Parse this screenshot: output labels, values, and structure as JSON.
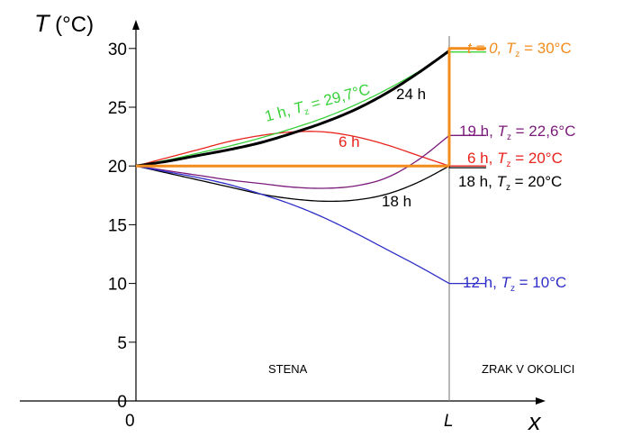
{
  "chart_data": {
    "type": "line",
    "title": "",
    "ylabel": "T (°C)",
    "xlabel": "x",
    "ylim": [
      0,
      32
    ],
    "yticks": [
      0,
      5,
      10,
      15,
      20,
      25,
      30
    ],
    "xticks": [
      {
        "value": 0,
        "label": "0"
      },
      {
        "value": 1,
        "label": "L"
      }
    ],
    "grid": false,
    "regions": [
      {
        "label": "STENA"
      },
      {
        "label": "ZRAK V OKOLICI"
      }
    ],
    "series": [
      {
        "label": "t = 0, Tz = 30°C",
        "color": "#f28c1c",
        "wall": {
          "x": [
            0,
            1
          ],
          "y": [
            20,
            20
          ]
        },
        "ambient": 30
      },
      {
        "label": "1 h, Tz = 29,7°C",
        "color": "#39d13a",
        "wall": {
          "x": [
            0,
            0.1,
            0.2,
            0.3,
            0.4,
            0.5,
            0.6,
            0.7,
            0.8,
            0.9,
            1.0
          ],
          "y": [
            20,
            20.5,
            21.1,
            21.7,
            22.4,
            23.2,
            24.1,
            25.2,
            26.5,
            28.0,
            29.7
          ]
        },
        "ambient": 29.7
      },
      {
        "label": "24 h",
        "color": "#000000",
        "wall": {
          "x": [
            0,
            0.1,
            0.2,
            0.3,
            0.4,
            0.5,
            0.6,
            0.7,
            0.8,
            0.9,
            1.0
          ],
          "y": [
            20,
            20.4,
            20.9,
            21.4,
            22.0,
            22.8,
            23.7,
            24.8,
            26.2,
            27.9,
            29.8
          ]
        }
      },
      {
        "label": "6 h",
        "color": "#e8231c",
        "wall": {
          "x": [
            0,
            0.1,
            0.2,
            0.3,
            0.4,
            0.5,
            0.6,
            0.7,
            0.8,
            0.9,
            1.0
          ],
          "y": [
            20,
            20.7,
            21.4,
            22.1,
            22.6,
            22.9,
            22.9,
            22.5,
            21.8,
            20.9,
            20.0
          ]
        },
        "ambient": 20
      },
      {
        "label": "19 h, Tz = 22,6°C",
        "color": "#7a1a7a",
        "wall": {
          "x": [
            0,
            0.1,
            0.2,
            0.3,
            0.4,
            0.5,
            0.6,
            0.7,
            0.8,
            0.9,
            1.0
          ],
          "y": [
            20,
            19.6,
            19.2,
            18.8,
            18.5,
            18.2,
            18.1,
            18.3,
            19.0,
            20.5,
            22.6
          ]
        },
        "ambient": 22.6
      },
      {
        "label": "18 h, Tz = 20°C",
        "color": "#000000",
        "wall": {
          "x": [
            0,
            0.1,
            0.2,
            0.3,
            0.4,
            0.5,
            0.6,
            0.7,
            0.8,
            0.9,
            1.0
          ],
          "y": [
            20,
            19.4,
            18.8,
            18.2,
            17.6,
            17.2,
            17.0,
            17.1,
            17.6,
            18.6,
            20.0
          ]
        },
        "ambient": 19.85
      },
      {
        "label": "12 h, Tz = 10°C",
        "color": "#2e2ec8",
        "wall": {
          "x": [
            0,
            0.1,
            0.2,
            0.3,
            0.4,
            0.5,
            0.6,
            0.7,
            0.8,
            0.9,
            1.0
          ],
          "y": [
            20,
            19.5,
            19.0,
            18.4,
            17.6,
            16.7,
            15.6,
            14.3,
            12.9,
            11.5,
            10.0
          ]
        },
        "ambient": 10
      }
    ]
  },
  "labels": {
    "y_axis_T": "T",
    "y_axis_unit": " (°C)",
    "x_axis": "x",
    "region_wall": "STENA",
    "region_air": "ZRAK V OKOLICI",
    "t0": {
      "a": "t = 0, ",
      "b": "T",
      "sub": "z",
      "c": " = 30°C"
    },
    "h1": {
      "a": "1 h, ",
      "b": "T",
      "sub": "z",
      "c": " = 29,7°C"
    },
    "h24": "24 h",
    "h6_wall": "6 h",
    "h18_wall": "18 h",
    "h19": {
      "a": "19 h, ",
      "b": "T",
      "sub": "z",
      "c": " = 22,6°C"
    },
    "h6_amb": {
      "a": "6 h, ",
      "b": "T",
      "sub": "z",
      "c": " = 20°C"
    },
    "h18_amb": {
      "a": "18 h, ",
      "b": "T",
      "sub": "z",
      "c": " = 20°C"
    },
    "h12": {
      "a": "12 h, ",
      "b": "T",
      "sub": "z",
      "c": " = 10°C"
    }
  }
}
